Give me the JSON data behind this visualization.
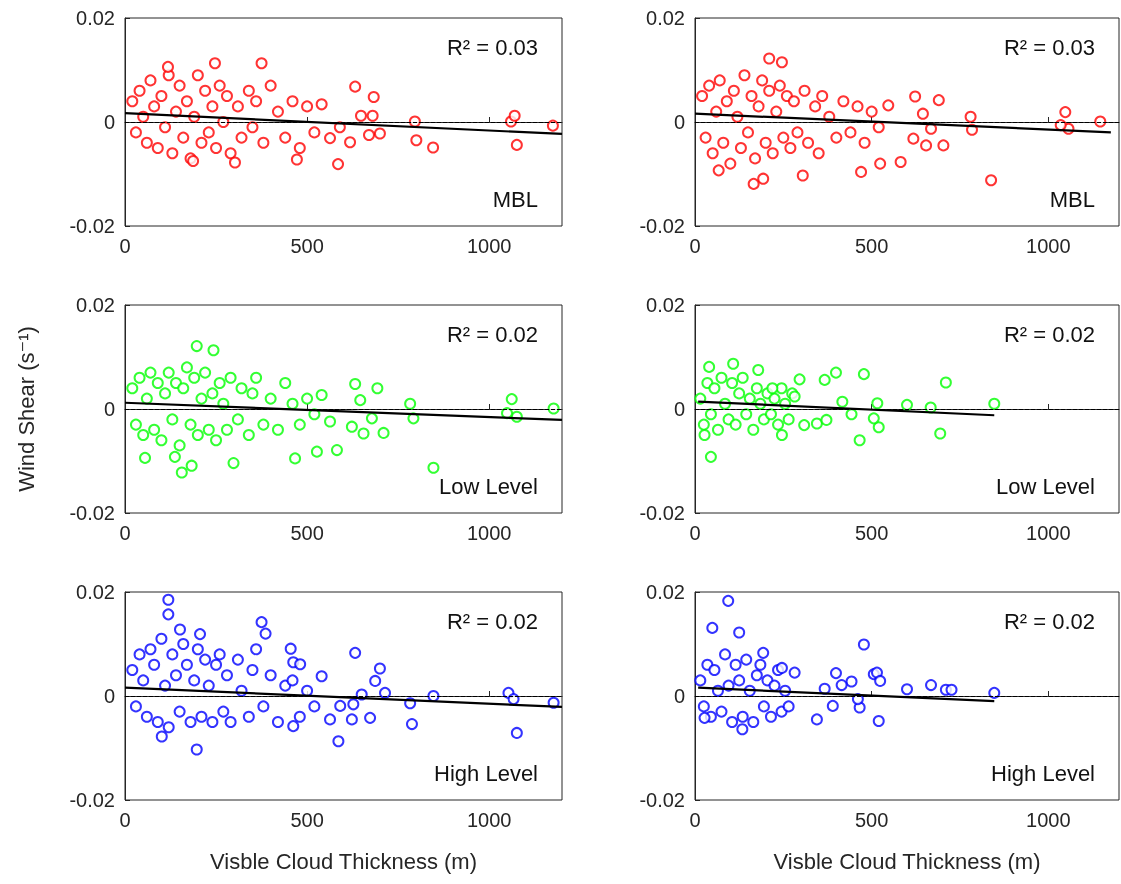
{
  "chart_data": [
    {
      "type": "scatter",
      "xlim": [
        0,
        1200
      ],
      "xticks": [
        0,
        500,
        1000
      ],
      "ylim": [
        -0.02,
        0.02
      ],
      "yticks": [
        -0.02,
        0,
        0.02
      ],
      "marker": "circle",
      "annotations": [
        "R² = 0.03",
        "MBL"
      ],
      "ref_lines": [
        {
          "axis": "y",
          "value": 0,
          "color": "#000000",
          "line_style": "dashed"
        }
      ],
      "series": [
        {
          "type": "scatter",
          "color": "#ff0000",
          "x": [
            20,
            30,
            40,
            50,
            60,
            70,
            80,
            90,
            100,
            110,
            120,
            130,
            140,
            150,
            160,
            170,
            180,
            190,
            200,
            210,
            220,
            230,
            240,
            250,
            260,
            270,
            280,
            290,
            310,
            320,
            340,
            350,
            360,
            380,
            400,
            420,
            440,
            460,
            480,
            500,
            520,
            118,
            247,
            375,
            585,
            187,
            302,
            472,
            846,
            1076,
            1175,
            1060,
            1070,
            796,
            800,
            683,
            632,
            680,
            648,
            700,
            618,
            670,
            563,
            590,
            540
          ],
          "values": [
            0.004,
            -0.002,
            0.006,
            0.001,
            -0.004,
            0.008,
            0.003,
            -0.005,
            0.005,
            -0.001,
            0.009,
            -0.006,
            0.002,
            0.007,
            -0.003,
            0.004,
            -0.007,
            0.001,
            0.009,
            -0.004,
            0.006,
            -0.002,
            0.003,
            -0.005,
            0.007,
            0,
            0.005,
            -0.006,
            0.003,
            -0.003,
            0.006,
            -0.001,
            0.004,
            -0.004,
            0.007,
            0.002,
            -0.003,
            0.004,
            -0.005,
            0.003,
            -0.002,
            0.0106,
            0.0113,
            0.0113,
            -0.0081,
            -0.0075,
            -0.0078,
            -0.0072,
            -0.0049,
            -0.0044,
            -0.0007,
            0.0001,
            0.0012,
            0.0001,
            -0.0035,
            0.0048,
            0.0068,
            0.0012,
            0.0012,
            -0.0022,
            -0.0039,
            -0.0025,
            -0.0031,
            -0.001,
            0.0034
          ]
        },
        {
          "type": "line",
          "color": "#000000",
          "marker": "none",
          "line_style": "solid",
          "x": [
            0,
            1200
          ],
          "values": [
            0.0017,
            -0.0023
          ]
        }
      ]
    },
    {
      "type": "scatter",
      "xlim": [
        0,
        1200
      ],
      "xticks": [
        0,
        500,
        1000
      ],
      "ylim": [
        -0.02,
        0.02
      ],
      "yticks": [
        -0.02,
        0,
        0.02
      ],
      "marker": "circle",
      "annotations": [
        "R² = 0.03",
        "MBL"
      ],
      "ref_lines": [
        {
          "axis": "y",
          "value": 0,
          "color": "#000000",
          "line_style": "dashed"
        }
      ],
      "series": [
        {
          "type": "scatter",
          "color": "#ff0000",
          "x": [
            20,
            30,
            40,
            50,
            60,
            70,
            80,
            90,
            100,
            110,
            120,
            130,
            140,
            150,
            160,
            170,
            180,
            190,
            200,
            210,
            220,
            230,
            240,
            250,
            260,
            270,
            280,
            290,
            310,
            320,
            340,
            350,
            360,
            380,
            400,
            420,
            440,
            460,
            480,
            500,
            520,
            838,
            1048,
            1057,
            1035,
            780,
            784,
            623,
            690,
            645,
            668,
            654,
            703,
            618,
            582,
            524,
            470,
            193,
            166,
            67,
            210,
            246,
            305,
            547,
            1147
          ],
          "values": [
            0.005,
            -0.003,
            0.007,
            -0.006,
            0.002,
            0.008,
            -0.004,
            0.004,
            -0.008,
            0.006,
            0.001,
            -0.005,
            0.009,
            -0.002,
            0.005,
            -0.007,
            0.003,
            0.008,
            -0.004,
            0.006,
            -0.006,
            0.002,
            0.007,
            -0.003,
            0.005,
            -0.005,
            0.004,
            -0.002,
            0.006,
            -0.004,
            0.003,
            -0.006,
            0.005,
            0.001,
            -0.003,
            0.004,
            -0.002,
            0.003,
            -0.004,
            0.002,
            -0.001,
            -0.0112,
            0.0019,
            -0.0013,
            -0.0006,
            0.001,
            -0.0015,
            0.0049,
            0.0042,
            0.0016,
            -0.0013,
            -0.0045,
            -0.0045,
            -0.0032,
            -0.0077,
            -0.008,
            -0.0096,
            -0.0109,
            -0.0119,
            -0.0093,
            0.0122,
            0.0115,
            -0.0103,
            0.0032,
            0.0001
          ]
        },
        {
          "type": "line",
          "color": "#000000",
          "marker": "none",
          "line_style": "solid",
          "x": [
            0,
            1177
          ],
          "values": [
            0.0016,
            -0.002
          ]
        }
      ]
    },
    {
      "type": "scatter",
      "xlim": [
        0,
        1200
      ],
      "xticks": [
        0,
        500,
        1000
      ],
      "ylim": [
        -0.02,
        0.02
      ],
      "yticks": [
        -0.02,
        0,
        0.02
      ],
      "marker": "circle",
      "ylabel": "Wind Shear (s⁻¹)",
      "annotations": [
        "R² = 0.02",
        "Low Level"
      ],
      "ref_lines": [
        {
          "axis": "y",
          "value": 0,
          "color": "#000000",
          "line_style": "dashed"
        }
      ],
      "series": [
        {
          "type": "scatter",
          "color": "#00ff00",
          "x": [
            20,
            30,
            40,
            50,
            60,
            70,
            80,
            90,
            100,
            110,
            120,
            130,
            140,
            150,
            160,
            170,
            180,
            190,
            200,
            210,
            220,
            230,
            240,
            250,
            260,
            270,
            280,
            290,
            310,
            320,
            340,
            350,
            360,
            380,
            400,
            420,
            440,
            460,
            480,
            500,
            520,
            847,
            1177,
            1062,
            1076,
            1049,
            783,
            792,
            632,
            693,
            646,
            678,
            655,
            710,
            623,
            582,
            527,
            467,
            197,
            243,
            156,
            183,
            298,
            55,
            137,
            540,
            563
          ],
          "values": [
            0.004,
            -0.003,
            0.006,
            -0.005,
            0.002,
            0.007,
            -0.004,
            0.005,
            -0.006,
            0.003,
            0.007,
            -0.002,
            0.005,
            -0.007,
            0.004,
            0.008,
            -0.003,
            0.006,
            -0.005,
            0.002,
            0.007,
            -0.004,
            0.003,
            -0.006,
            0.005,
            0.001,
            -0.004,
            0.006,
            -0.002,
            0.004,
            -0.005,
            0.003,
            0.006,
            -0.003,
            0.002,
            -0.004,
            0.005,
            0.001,
            -0.003,
            0.002,
            -0.001,
            -0.0113,
            0.0001,
            0.0019,
            -0.0015,
            -0.0008,
            0.001,
            -0.0018,
            0.0048,
            0.004,
            0.0017,
            -0.0018,
            -0.0047,
            -0.0046,
            -0.0034,
            -0.0079,
            -0.0082,
            -0.0095,
            0.0121,
            0.0113,
            -0.0122,
            -0.0109,
            -0.0104,
            -0.0094,
            -0.0092,
            0.0027,
            -0.0024
          ]
        },
        {
          "type": "line",
          "color": "#000000",
          "marker": "none",
          "line_style": "solid",
          "x": [
            0,
            1200
          ],
          "values": [
            0.0012,
            -0.0021
          ]
        }
      ]
    },
    {
      "type": "scatter",
      "xlim": [
        0,
        1200
      ],
      "xticks": [
        0,
        500,
        1000
      ],
      "ylim": [
        -0.02,
        0.02
      ],
      "yticks": [
        -0.02,
        0,
        0.02
      ],
      "marker": "circle",
      "annotations": [
        "R² = 0.02",
        "Low Level"
      ],
      "ref_lines": [
        {
          "axis": "y",
          "value": 0,
          "color": "#000000",
          "line_style": "dashed"
        }
      ],
      "series": [
        {
          "type": "scatter",
          "color": "#00ff00",
          "x": [
            15,
            25,
            35,
            45,
            55,
            65,
            75,
            85,
            95,
            105,
            115,
            125,
            135,
            145,
            155,
            165,
            175,
            185,
            195,
            205,
            215,
            225,
            235,
            245,
            255,
            265,
            275,
            847,
            710,
            694,
            667,
            600,
            478,
            399,
            367,
            296,
            466,
            520,
            506,
            516,
            417,
            443,
            45,
            108,
            40,
            179,
            27,
            246,
            309,
            345,
            372,
            282,
            219
          ],
          "values": [
            0.002,
            -0.003,
            0.005,
            -0.001,
            0.004,
            -0.004,
            0.006,
            0.001,
            -0.002,
            0.005,
            -0.003,
            0.003,
            0.006,
            -0.001,
            0.002,
            -0.004,
            0.004,
            0.001,
            -0.002,
            0.003,
            -0.001,
            0.002,
            -0.003,
            0.004,
            0.001,
            -0.002,
            0.003,
            0.001,
            0.0051,
            -0.0047,
            0.0003,
            0.0008,
            0.0067,
            0.007,
            0.0056,
            0.0057,
            -0.006,
            -0.0035,
            -0.0018,
            0.0011,
            0.0014,
            -0.001,
            -0.0092,
            0.0087,
            0.0081,
            0.0075,
            -0.005,
            -0.005,
            -0.0031,
            -0.0028,
            -0.0021,
            0.0024,
            0.004
          ]
        },
        {
          "type": "line",
          "color": "#000000",
          "marker": "none",
          "line_style": "solid",
          "x": [
            9,
            847
          ],
          "values": [
            0.0014,
            -0.0012
          ]
        }
      ]
    },
    {
      "type": "scatter",
      "xlim": [
        0,
        1200
      ],
      "xticks": [
        0,
        500,
        1000
      ],
      "ylim": [
        -0.02,
        0.02
      ],
      "yticks": [
        -0.02,
        0,
        0.02
      ],
      "marker": "circle",
      "xlabel": "Visble Cloud Thickness (m)",
      "annotations": [
        "R² = 0.02",
        "High Level"
      ],
      "ref_lines": [
        {
          "axis": "y",
          "value": 0,
          "color": "#000000",
          "line_style": "dashed"
        }
      ],
      "series": [
        {
          "type": "scatter",
          "color": "#0000ff",
          "x": [
            20,
            30,
            40,
            50,
            60,
            70,
            80,
            90,
            100,
            110,
            120,
            130,
            140,
            150,
            160,
            170,
            180,
            190,
            200,
            210,
            220,
            230,
            240,
            250,
            260,
            270,
            280,
            290,
            310,
            320,
            340,
            350,
            360,
            380,
            400,
            420,
            440,
            460,
            480,
            500,
            520,
            119,
            119,
            197,
            101,
            375,
            386,
            455,
            462,
            481,
            632,
            700,
            687,
            714,
            650,
            847,
            1053,
            1067,
            1076,
            1177,
            788,
            783,
            586,
            563,
            623,
            673,
            627,
            591,
            540,
            462,
            151,
            206
          ],
          "values": [
            0.005,
            -0.002,
            0.008,
            0.003,
            -0.004,
            0.009,
            0.006,
            -0.005,
            0.011,
            0.002,
            -0.006,
            0.008,
            0.004,
            -0.003,
            0.01,
            0.006,
            -0.005,
            0.003,
            0.009,
            -0.004,
            0.007,
            0.002,
            -0.005,
            0.006,
            0.008,
            -0.003,
            0.004,
            -0.005,
            0.007,
            0.001,
            -0.004,
            0.005,
            0.009,
            -0.002,
            0.004,
            -0.005,
            0.002,
            0.003,
            -0.004,
            0.001,
            -0.002,
            0.0185,
            0.0157,
            -0.0103,
            -0.0078,
            0.0142,
            0.012,
            0.0091,
            0.0065,
            0.0061,
            0.0083,
            0.0053,
            0.0029,
            0.0006,
            0.0003,
            0,
            0.0006,
            -0.0006,
            -0.0071,
            -0.0013,
            -0.0054,
            -0.0014,
            -0.0087,
            -0.0045,
            -0.0045,
            -0.0042,
            -0.0016,
            -0.0019,
            0.0038,
            -0.0058,
            0.0128,
            0.0119
          ]
        },
        {
          "type": "line",
          "color": "#000000",
          "marker": "none",
          "line_style": "solid",
          "x": [
            0,
            1200
          ],
          "values": [
            0.0016,
            -0.0021
          ]
        }
      ]
    },
    {
      "type": "scatter",
      "xlim": [
        0,
        1200
      ],
      "xticks": [
        0,
        500,
        1000
      ],
      "ylim": [
        -0.02,
        0.02
      ],
      "yticks": [
        -0.02,
        0,
        0.02
      ],
      "marker": "circle",
      "xlabel": "Visble Cloud Thickness (m)",
      "annotations": [
        "R² = 0.02",
        "High Level"
      ],
      "ref_lines": [
        {
          "axis": "y",
          "value": 0,
          "color": "#000000",
          "line_style": "dashed"
        }
      ],
      "series": [
        {
          "type": "scatter",
          "color": "#0000ff",
          "x": [
            15,
            25,
            35,
            45,
            55,
            65,
            75,
            85,
            95,
            105,
            115,
            125,
            135,
            145,
            155,
            165,
            175,
            185,
            195,
            205,
            215,
            225,
            235,
            245,
            255,
            265,
            94,
            49,
            478,
            506,
            515,
            524,
            520,
            466,
            461,
            399,
            443,
            415,
            367,
            600,
            668,
            710,
            726,
            847,
            390,
            345,
            134,
            27,
            125,
            193,
            246,
            282
          ],
          "values": [
            0.003,
            -0.002,
            0.006,
            -0.004,
            0.005,
            0.001,
            -0.003,
            0.008,
            0.002,
            -0.005,
            0.006,
            0.003,
            -0.004,
            0.007,
            0.001,
            -0.005,
            0.004,
            0.006,
            -0.002,
            0.003,
            -0.004,
            0.002,
            0.005,
            -0.003,
            0.001,
            -0.002,
            0.0183,
            0.0131,
            0.0099,
            0.0042,
            0.0045,
            0.0029,
            -0.0048,
            -0.0022,
            -0.0006,
            0.0044,
            0.0028,
            0.0021,
            0.0014,
            0.0013,
            0.0021,
            0.0012,
            0.0012,
            0.0006,
            -0.0019,
            -0.0045,
            -0.0064,
            -0.0042,
            0.0122,
            0.0083,
            0.0054,
            0.0045
          ]
        },
        {
          "type": "line",
          "color": "#000000",
          "marker": "none",
          "line_style": "solid",
          "x": [
            9,
            847
          ],
          "values": [
            0.0016,
            -0.001
          ]
        }
      ]
    }
  ]
}
